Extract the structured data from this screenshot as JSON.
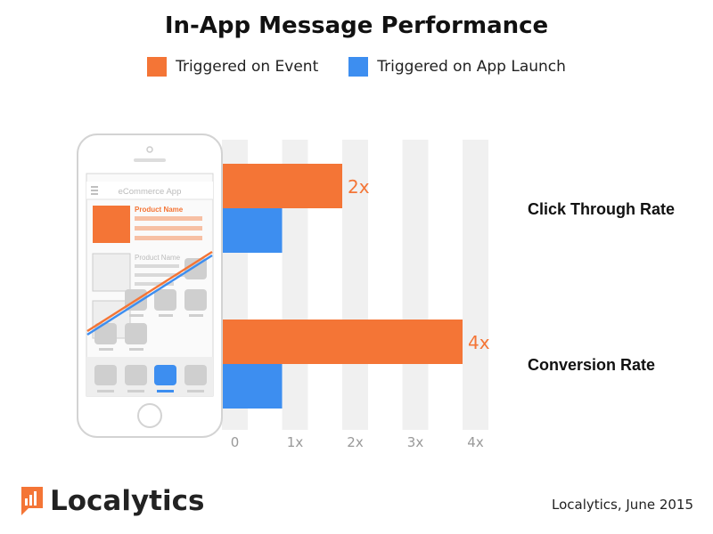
{
  "title": "In-App Message Performance",
  "legend": [
    {
      "label": "Triggered on Event",
      "color": "#f47536"
    },
    {
      "label": "Triggered on App Launch",
      "color": "#3d8ef0"
    }
  ],
  "chart_data": {
    "type": "bar",
    "orientation": "horizontal",
    "categories": [
      "Click Through Rate",
      "Conversion Rate"
    ],
    "series": [
      {
        "name": "Triggered on Event",
        "values": [
          2,
          4
        ],
        "color": "#f47536"
      },
      {
        "name": "Triggered on App Launch",
        "values": [
          1,
          1
        ],
        "color": "#3d8ef0"
      }
    ],
    "data_labels": [
      "2x",
      "4x"
    ],
    "x_ticks": [
      {
        "value": 0,
        "label": "0"
      },
      {
        "value": 1,
        "label": "1x"
      },
      {
        "value": 2,
        "label": "2x"
      },
      {
        "value": 3,
        "label": "3x"
      },
      {
        "value": 4,
        "label": "4x"
      }
    ],
    "xlim": [
      0,
      4
    ],
    "grid": "vertical bands",
    "legend_position": "top"
  },
  "phone": {
    "app_title": "eCommerce App",
    "product_name_1": "Product Name",
    "product_name_2": "Product Name"
  },
  "brand": "Localytics",
  "credit": "Localytics, June 2015"
}
